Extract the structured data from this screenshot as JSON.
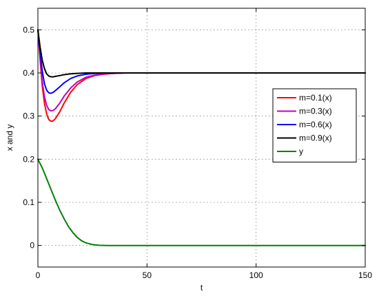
{
  "chart_data": {
    "type": "line",
    "title": "",
    "xlabel": "t",
    "ylabel": "x and y",
    "xlim": [
      0,
      150
    ],
    "ylim": [
      -0.05,
      0.55
    ],
    "xticks": [
      0,
      50,
      100,
      150
    ],
    "yticks": [
      0,
      0.1,
      0.2,
      0.3,
      0.4,
      0.5
    ],
    "xtick_labels": [
      "0",
      "50",
      "100",
      "150"
    ],
    "ytick_labels": [
      "0",
      "0.1",
      "0.2",
      "0.3",
      "0.4",
      "0.5"
    ],
    "grid": true,
    "legend_position": "right",
    "series": [
      {
        "name": "m=0.1(x)",
        "color": "#ff0000",
        "x": [
          0,
          1,
          2,
          3,
          4,
          5,
          6,
          7,
          8,
          10,
          12,
          15,
          18,
          22,
          26,
          30,
          35,
          40,
          50,
          60,
          80,
          100,
          120,
          150
        ],
        "y": [
          0.5,
          0.43,
          0.37,
          0.33,
          0.305,
          0.292,
          0.288,
          0.289,
          0.294,
          0.31,
          0.33,
          0.355,
          0.373,
          0.387,
          0.394,
          0.397,
          0.399,
          0.4,
          0.4,
          0.4,
          0.4,
          0.4,
          0.4,
          0.4
        ]
      },
      {
        "name": "m=0.3(x)",
        "color": "#bf00bf",
        "x": [
          0,
          1,
          2,
          3,
          4,
          5,
          6,
          7,
          8,
          10,
          12,
          15,
          18,
          22,
          26,
          30,
          35,
          40,
          50,
          60,
          80,
          100,
          120,
          150
        ],
        "y": [
          0.5,
          0.44,
          0.38,
          0.345,
          0.325,
          0.315,
          0.312,
          0.313,
          0.317,
          0.33,
          0.346,
          0.365,
          0.379,
          0.39,
          0.395,
          0.398,
          0.399,
          0.4,
          0.4,
          0.4,
          0.4,
          0.4,
          0.4,
          0.4
        ]
      },
      {
        "name": "m=0.6(x)",
        "color": "#0000ff",
        "x": [
          0,
          1,
          2,
          3,
          4,
          5,
          6,
          7,
          8,
          10,
          12,
          15,
          18,
          22,
          26,
          30,
          35,
          40,
          50,
          60,
          80,
          100,
          120,
          150
        ],
        "y": [
          0.5,
          0.45,
          0.405,
          0.375,
          0.36,
          0.354,
          0.353,
          0.355,
          0.359,
          0.368,
          0.377,
          0.387,
          0.393,
          0.397,
          0.399,
          0.4,
          0.4,
          0.4,
          0.4,
          0.4,
          0.4,
          0.4,
          0.4,
          0.4
        ]
      },
      {
        "name": "m=0.9(x)",
        "color": "#000000",
        "x": [
          0,
          1,
          2,
          3,
          4,
          5,
          6,
          7,
          8,
          10,
          12,
          15,
          18,
          22,
          26,
          30,
          35,
          40,
          50,
          60,
          80,
          100,
          120,
          150
        ],
        "y": [
          0.5,
          0.46,
          0.43,
          0.41,
          0.398,
          0.393,
          0.391,
          0.391,
          0.392,
          0.394,
          0.396,
          0.398,
          0.399,
          0.4,
          0.4,
          0.4,
          0.4,
          0.4,
          0.4,
          0.4,
          0.4,
          0.4,
          0.4,
          0.4
        ]
      },
      {
        "name": "y",
        "color": "#008000",
        "x": [
          0,
          2,
          4,
          6,
          8,
          10,
          12,
          14,
          16,
          18,
          20,
          22,
          25,
          28,
          32,
          36,
          40,
          50,
          60,
          80,
          100,
          120,
          150
        ],
        "y": [
          0.2,
          0.18,
          0.155,
          0.13,
          0.105,
          0.082,
          0.062,
          0.044,
          0.03,
          0.019,
          0.011,
          0.006,
          0.002,
          0.0005,
          0,
          0,
          0,
          0,
          0,
          0,
          0,
          0,
          0
        ]
      }
    ]
  }
}
